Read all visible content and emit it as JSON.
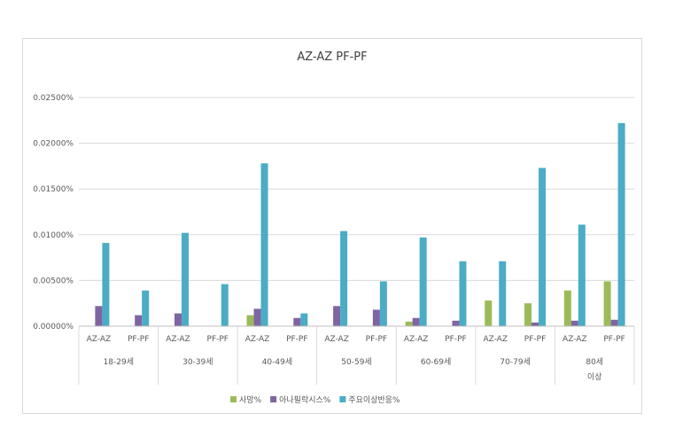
{
  "chart_data": {
    "type": "bar",
    "title": "AZ-AZ PF-PF",
    "xlabel": "",
    "ylabel": "",
    "ylim": [
      0,
      0.025
    ],
    "y_ticks": [
      "0.00000%",
      "0.00500%",
      "0.01000%",
      "0.01500%",
      "0.02000%",
      "0.02500%"
    ],
    "grid": true,
    "legend_position": "bottom",
    "groups": [
      {
        "label": "18-29세",
        "label_lines": [
          "18-29세"
        ],
        "sub": [
          "AZ-AZ",
          "PF-PF"
        ]
      },
      {
        "label": "30-39세",
        "label_lines": [
          "30-39세"
        ],
        "sub": [
          "AZ-AZ",
          "PF-PF"
        ]
      },
      {
        "label": "40-49세",
        "label_lines": [
          "40-49세"
        ],
        "sub": [
          "AZ-AZ",
          "PF-PF"
        ]
      },
      {
        "label": "50-59세",
        "label_lines": [
          "50-59세"
        ],
        "sub": [
          "AZ-AZ",
          "PF-PF"
        ]
      },
      {
        "label": "60-69세",
        "label_lines": [
          "60-69세"
        ],
        "sub": [
          "AZ-AZ",
          "PF-PF"
        ]
      },
      {
        "label": "70-79세",
        "label_lines": [
          "70-79세"
        ],
        "sub": [
          "AZ-AZ",
          "PF-PF"
        ]
      },
      {
        "label": "80세 이상",
        "label_lines": [
          "80세",
          "이상"
        ],
        "sub": [
          "AZ-AZ",
          "PF-PF"
        ]
      }
    ],
    "categories": [
      "18-29세 AZ-AZ",
      "18-29세 PF-PF",
      "30-39세 AZ-AZ",
      "30-39세 PF-PF",
      "40-49세 AZ-AZ",
      "40-49세 PF-PF",
      "50-59세 AZ-AZ",
      "50-59세 PF-PF",
      "60-69세 AZ-AZ",
      "60-69세 PF-PF",
      "70-79세 AZ-AZ",
      "70-79세 PF-PF",
      "80세 이상 AZ-AZ",
      "80세 이상 PF-PF"
    ],
    "series": [
      {
        "name": "사망%",
        "color": "#9bbb59",
        "values": [
          0,
          0,
          0,
          0,
          0.0012,
          0,
          0,
          0,
          0.0005,
          0,
          0.0028,
          0.0025,
          0.0039,
          0.0049
        ]
      },
      {
        "name": "아나필락시스%",
        "color": "#8064a2",
        "values": [
          0.0022,
          0.0012,
          0.0014,
          0,
          0.0019,
          0.0009,
          0.0022,
          0.0018,
          0.0009,
          0.0006,
          0,
          0.0004,
          0.0006,
          0.0007
        ]
      },
      {
        "name": "주요이상반응%",
        "color": "#4bacc6",
        "values": [
          0.0091,
          0.0039,
          0.0102,
          0.0046,
          0.0178,
          0.0014,
          0.0104,
          0.0049,
          0.0097,
          0.0071,
          0.0071,
          0.0173,
          0.0111,
          0.0222
        ]
      }
    ]
  }
}
